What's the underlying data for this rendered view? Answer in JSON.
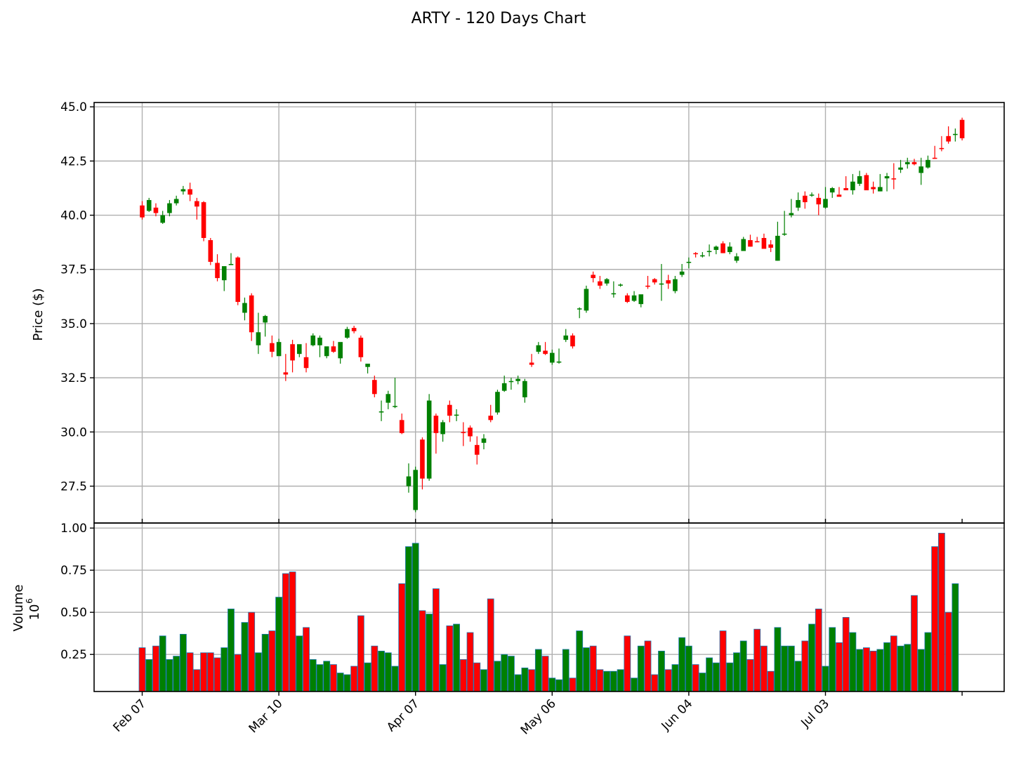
{
  "chart_data": {
    "type": "candlestick",
    "title": "ARTY - 120 Days Chart",
    "colors": {
      "up": "#008000",
      "down": "#ff0000",
      "volume_edge": "#1f77b4",
      "grid": "#b0b0b0"
    },
    "grid": true,
    "price_panel": {
      "ylabel": "Price ($)",
      "ylim": [
        25.8,
        45.2
      ],
      "yticks": [
        "27.5",
        "30.0",
        "32.5",
        "35.0",
        "37.5",
        "40.0",
        "42.5",
        "45.0"
      ]
    },
    "volume_panel": {
      "ylabel": "Volume",
      "ylabel_multiplier": "10",
      "ylabel_exponent": "6",
      "ylim": [
        0.03,
        1.03
      ],
      "yticks": [
        "0.25",
        "0.50",
        "0.75",
        "1.00"
      ]
    },
    "x_ticks": [
      {
        "index": 0,
        "label": "Feb 07"
      },
      {
        "index": 20,
        "label": "Mar 10"
      },
      {
        "index": 40,
        "label": "Apr 07"
      },
      {
        "index": 60,
        "label": "May 06"
      },
      {
        "index": 80,
        "label": "Jun 04"
      },
      {
        "index": 100,
        "label": "Jul 03"
      },
      {
        "index": 120,
        "label": ""
      }
    ],
    "series": [
      {
        "name": "Open",
        "values": [
          40.45,
          40.2,
          40.35,
          39.65,
          40.1,
          40.55,
          41.1,
          41.2,
          40.65,
          40.6,
          38.85,
          37.8,
          37.0,
          37.7,
          38.05,
          35.5,
          36.3,
          34.0,
          35.05,
          34.1,
          33.5,
          32.75,
          34.05,
          33.6,
          33.45,
          34.0,
          34.0,
          33.5,
          33.95,
          33.4,
          34.35,
          34.8,
          34.35,
          33.0,
          32.4,
          30.9,
          31.35,
          31.2,
          30.55,
          27.5,
          26.4,
          29.65,
          27.85,
          30.75,
          29.9,
          31.25,
          30.8,
          30.0,
          30.2,
          29.4,
          29.5,
          30.75,
          30.9,
          31.9,
          32.35,
          32.35,
          31.6,
          33.2,
          33.7,
          33.75,
          33.2,
          33.2,
          34.25,
          34.45,
          35.7,
          35.6,
          37.25,
          36.95,
          36.85,
          36.35,
          36.75,
          36.3,
          36.05,
          35.9,
          36.75,
          37.05,
          36.8,
          37.0,
          36.5,
          37.25,
          37.8,
          38.25,
          38.1,
          38.3,
          38.4,
          38.7,
          38.3,
          37.9,
          38.35,
          38.85,
          38.8,
          38.95,
          38.65,
          37.9,
          39.1,
          40.0,
          40.35,
          40.9,
          40.95,
          40.8,
          40.35,
          41.05,
          40.95,
          41.25,
          41.15,
          41.45,
          41.85,
          41.3,
          41.1,
          41.7,
          41.7,
          42.1,
          42.35,
          42.45,
          41.95,
          42.2,
          42.65,
          43.1,
          43.65,
          43.7,
          44.4
        ]
      },
      {
        "name": "High",
        "values": [
          40.65,
          40.8,
          40.55,
          40.2,
          40.7,
          40.9,
          41.35,
          41.5,
          40.8,
          40.65,
          38.95,
          38.2,
          37.6,
          38.25,
          38.1,
          36.2,
          36.4,
          35.5,
          35.4,
          34.45,
          34.3,
          33.6,
          34.25,
          33.65,
          34.1,
          34.55,
          34.45,
          33.55,
          34.2,
          34.05,
          34.85,
          34.9,
          34.45,
          33.1,
          32.6,
          31.45,
          31.9,
          32.5,
          30.85,
          28.55,
          28.4,
          29.75,
          31.75,
          30.85,
          30.55,
          31.45,
          31.05,
          30.45,
          30.3,
          29.8,
          29.9,
          31.25,
          31.95,
          32.6,
          32.5,
          32.6,
          32.45,
          33.6,
          34.15,
          34.15,
          33.8,
          33.85,
          34.75,
          34.55,
          35.75,
          36.75,
          37.4,
          37.2,
          37.1,
          36.95,
          36.85,
          36.4,
          36.5,
          36.3,
          37.2,
          37.1,
          37.75,
          37.25,
          37.2,
          37.75,
          38.05,
          38.3,
          38.3,
          38.65,
          38.6,
          38.8,
          38.75,
          38.25,
          39.0,
          39.1,
          39.0,
          39.15,
          38.85,
          39.7,
          40.2,
          40.75,
          41.05,
          41.1,
          41.05,
          41.0,
          41.3,
          41.3,
          41.3,
          41.8,
          41.9,
          42.05,
          41.95,
          41.55,
          41.9,
          41.95,
          42.4,
          42.55,
          42.65,
          42.6,
          42.65,
          42.75,
          43.2,
          43.65,
          44.1,
          44.0,
          44.5
        ]
      },
      {
        "name": "Low",
        "values": [
          39.8,
          40.15,
          39.95,
          39.6,
          39.95,
          40.45,
          40.95,
          40.65,
          39.8,
          38.8,
          37.7,
          36.95,
          36.5,
          37.7,
          35.85,
          35.15,
          34.2,
          33.6,
          34.4,
          33.45,
          33.5,
          32.35,
          32.75,
          33.45,
          32.75,
          33.95,
          33.45,
          33.4,
          33.65,
          33.15,
          34.3,
          34.55,
          33.25,
          32.7,
          31.6,
          30.5,
          31.05,
          31.1,
          29.9,
          27.2,
          26.3,
          27.35,
          27.75,
          29.0,
          29.55,
          30.45,
          30.5,
          29.35,
          29.55,
          28.5,
          29.2,
          30.45,
          30.8,
          31.85,
          31.95,
          32.2,
          31.35,
          33.0,
          33.6,
          33.55,
          33.1,
          33.15,
          34.15,
          33.85,
          35.25,
          35.5,
          36.9,
          36.6,
          36.75,
          36.2,
          36.7,
          35.95,
          36.0,
          35.75,
          36.6,
          36.8,
          36.05,
          36.6,
          36.4,
          37.15,
          37.55,
          38.05,
          38.05,
          38.1,
          38.2,
          38.25,
          38.2,
          37.8,
          38.35,
          38.55,
          38.75,
          38.7,
          38.3,
          37.9,
          39.05,
          39.9,
          40.2,
          40.3,
          40.85,
          40.0,
          40.3,
          40.8,
          40.95,
          41.15,
          40.95,
          41.35,
          41.2,
          41.0,
          41.1,
          41.1,
          41.2,
          41.95,
          42.15,
          42.3,
          41.4,
          42.15,
          42.6,
          42.95,
          43.3,
          43.4,
          43.45
        ]
      },
      {
        "name": "Close",
        "values": [
          39.9,
          40.7,
          40.1,
          40.0,
          40.55,
          40.75,
          41.2,
          40.95,
          40.4,
          38.95,
          37.85,
          37.1,
          37.65,
          37.75,
          36.0,
          35.95,
          34.6,
          34.6,
          35.35,
          33.7,
          34.15,
          32.65,
          33.3,
          34.05,
          32.95,
          34.45,
          34.35,
          33.95,
          33.7,
          34.15,
          34.75,
          34.65,
          33.45,
          33.15,
          31.75,
          30.95,
          31.75,
          31.2,
          29.95,
          27.95,
          28.25,
          27.85,
          31.45,
          29.95,
          30.45,
          30.75,
          30.8,
          29.95,
          29.8,
          28.95,
          29.7,
          30.55,
          31.85,
          32.25,
          32.35,
          32.45,
          32.35,
          33.1,
          34.0,
          33.6,
          33.65,
          33.25,
          34.45,
          33.95,
          35.7,
          36.6,
          37.1,
          36.75,
          37.05,
          36.4,
          36.8,
          36.0,
          36.3,
          36.35,
          36.7,
          36.9,
          36.85,
          36.85,
          37.05,
          37.4,
          37.85,
          38.2,
          38.15,
          38.35,
          38.55,
          38.25,
          38.55,
          38.1,
          38.9,
          38.55,
          38.75,
          38.45,
          38.5,
          39.05,
          39.15,
          40.1,
          40.7,
          40.6,
          40.95,
          40.5,
          40.75,
          41.25,
          40.85,
          41.15,
          41.55,
          41.8,
          41.15,
          41.2,
          41.3,
          41.8,
          41.65,
          42.2,
          42.45,
          42.35,
          42.25,
          42.55,
          42.6,
          43.05,
          43.4,
          43.75,
          43.55,
          43.45
        ]
      },
      {
        "name": "Volume",
        "values": [
          0.29,
          0.22,
          0.3,
          0.36,
          0.22,
          0.24,
          0.37,
          0.26,
          0.16,
          0.26,
          0.26,
          0.23,
          0.29,
          0.52,
          0.25,
          0.44,
          0.5,
          0.26,
          0.37,
          0.39,
          0.59,
          0.73,
          0.74,
          0.36,
          0.41,
          0.22,
          0.19,
          0.21,
          0.19,
          0.14,
          0.13,
          0.18,
          0.48,
          0.2,
          0.3,
          0.27,
          0.26,
          0.18,
          0.67,
          0.89,
          0.91,
          0.51,
          0.49,
          0.64,
          0.19,
          0.42,
          0.43,
          0.22,
          0.38,
          0.2,
          0.16,
          0.58,
          0.21,
          0.25,
          0.24,
          0.13,
          0.17,
          0.16,
          0.28,
          0.24,
          0.11,
          0.1,
          0.28,
          0.11,
          0.39,
          0.29,
          0.3,
          0.16,
          0.15,
          0.15,
          0.16,
          0.36,
          0.11,
          0.3,
          0.33,
          0.13,
          0.27,
          0.16,
          0.19,
          0.35,
          0.3,
          0.19,
          0.14,
          0.23,
          0.2,
          0.39,
          0.2,
          0.26,
          0.33,
          0.22,
          0.4,
          0.3,
          0.15,
          0.41,
          0.3,
          0.3,
          0.21,
          0.33,
          0.43,
          0.52,
          0.18,
          0.41,
          0.32,
          0.47,
          0.38,
          0.28,
          0.29,
          0.27,
          0.28,
          0.32,
          0.36,
          0.3,
          0.31,
          0.6,
          0.28,
          0.38,
          0.89,
          0.97,
          0.5,
          0.67
        ]
      }
    ]
  }
}
